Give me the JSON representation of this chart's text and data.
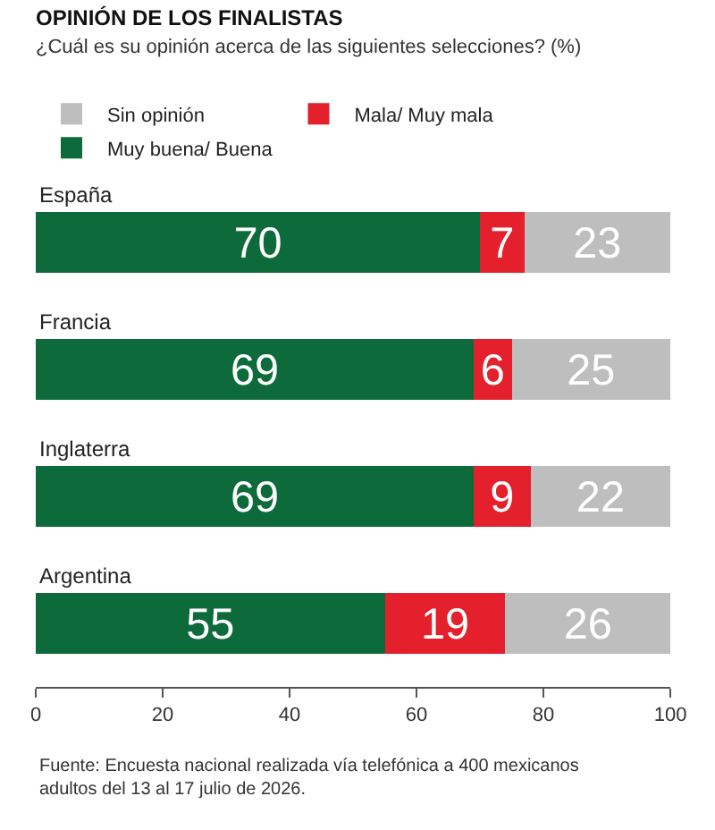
{
  "chart_data": {
    "type": "bar",
    "orientation": "horizontal",
    "stacked": true,
    "title": "OPINIÓN DE LOS FINALISTAS",
    "subtitle": "¿Cuál es su opinión acerca de las siguientes selecciones? (%)",
    "categories": [
      "España",
      "Francia",
      "Inglaterra",
      "Argentina"
    ],
    "series": [
      {
        "name": "Muy buena/ Buena",
        "color": "#0d6b3b",
        "values": [
          70,
          69,
          69,
          55
        ]
      },
      {
        "name": "Mala/ Muy mala",
        "color": "#e3202b",
        "values": [
          7,
          6,
          9,
          19
        ]
      },
      {
        "name": "Sin opinión",
        "color": "#bebebe",
        "values": [
          23,
          25,
          22,
          26
        ]
      }
    ],
    "data_labels": true,
    "xlim": [
      0,
      100
    ],
    "xticks": [
      0,
      20,
      40,
      60,
      80,
      100
    ],
    "legend": "top left",
    "annotations": [
      "Fuente: Encuesta nacional realizada vía telefónica a 400 mexicanos adultos del 13 al 17 julio de 2026."
    ]
  }
}
